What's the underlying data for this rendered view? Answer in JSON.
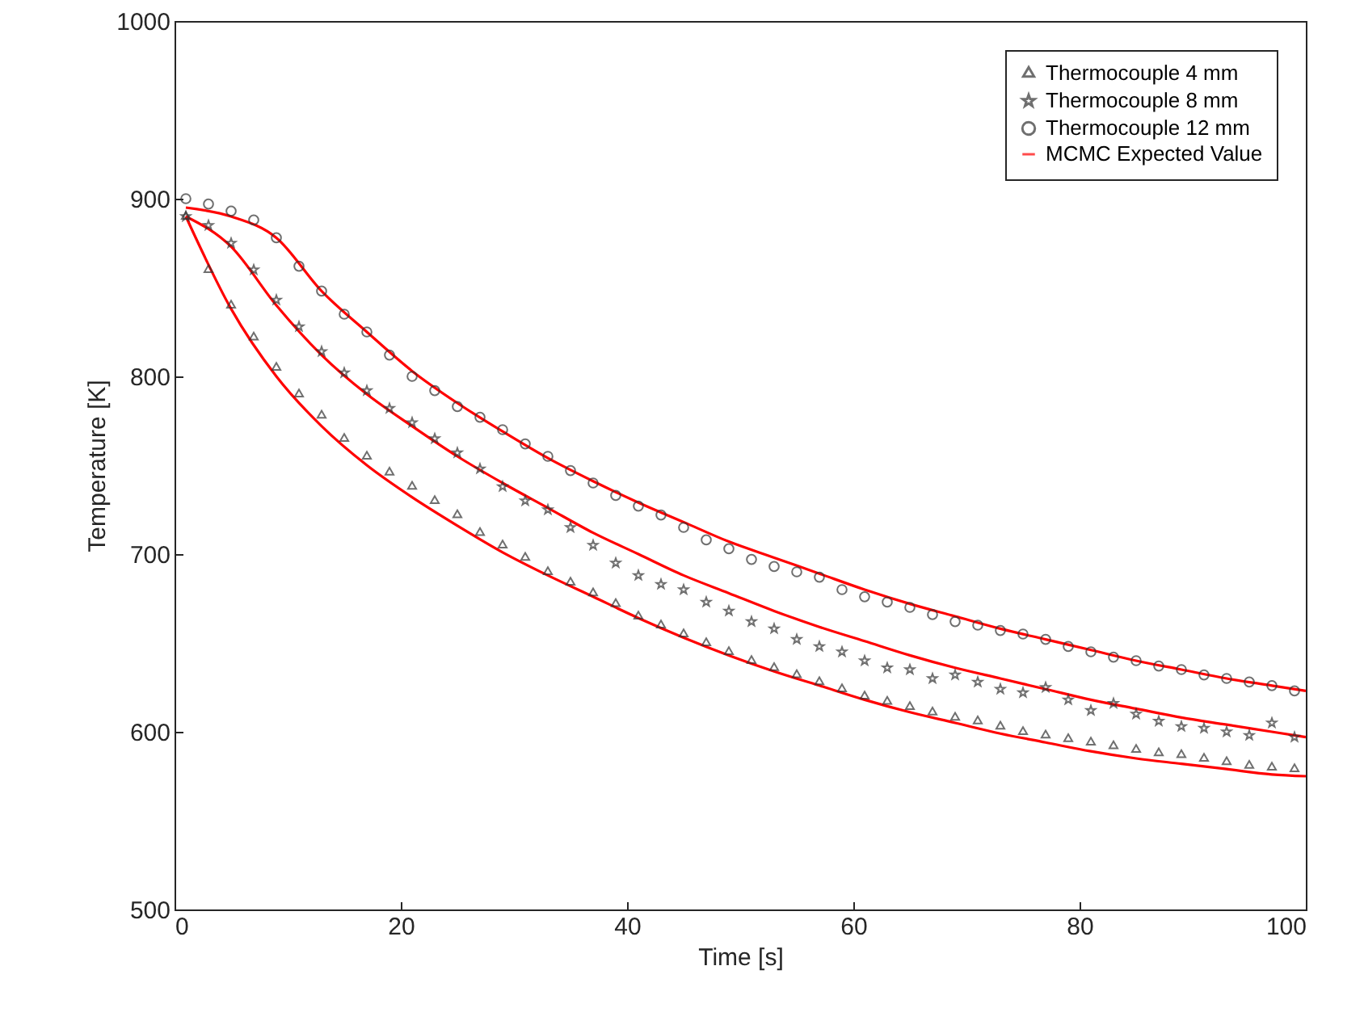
{
  "chart_data": {
    "type": "scatter",
    "xlabel": "Time [s]",
    "ylabel": "Temperature [K]",
    "xlim": [
      0,
      100
    ],
    "ylim": [
      500,
      1000
    ],
    "xticks": [
      0,
      20,
      40,
      60,
      80,
      100
    ],
    "yticks": [
      500,
      600,
      700,
      800,
      900,
      {
        "value": 1000,
        "label": "1000"
      }
    ],
    "legend": "top right",
    "x": [
      1,
      3,
      5,
      7,
      9,
      11,
      13,
      15,
      17,
      19,
      21,
      23,
      25,
      27,
      29,
      31,
      33,
      35,
      37,
      39,
      41,
      43,
      45,
      47,
      49,
      51,
      53,
      55,
      57,
      59,
      61,
      63,
      65,
      67,
      69,
      71,
      73,
      75,
      77,
      79,
      81,
      83,
      85,
      87,
      89,
      91,
      93,
      95,
      97,
      99
    ],
    "series": [
      {
        "name": "Thermocouple 4 mm",
        "color": "#333333",
        "marker": "triangle",
        "values": [
          890,
          860,
          840,
          822,
          805,
          790,
          778,
          765,
          755,
          746,
          738,
          730,
          722,
          712,
          705,
          698,
          690,
          684,
          678,
          672,
          665,
          660,
          655,
          650,
          645,
          640,
          636,
          632,
          628,
          624,
          620,
          617,
          614,
          611,
          608,
          606,
          603,
          600,
          598,
          596,
          594,
          592,
          590,
          588,
          587,
          585,
          583,
          581,
          580,
          579
        ]
      },
      {
        "name": "Thermocouple 8 mm",
        "color": "#333333",
        "marker": "star",
        "values": [
          890,
          885,
          875,
          860,
          843,
          828,
          814,
          802,
          792,
          782,
          774,
          765,
          757,
          748,
          738,
          730,
          725,
          715,
          705,
          695,
          688,
          683,
          680,
          673,
          668,
          662,
          658,
          652,
          648,
          645,
          640,
          636,
          635,
          630,
          632,
          628,
          624,
          622,
          625,
          618,
          612,
          616,
          610,
          606,
          603,
          602,
          600,
          598,
          605,
          597
        ]
      },
      {
        "name": "Thermocouple 12 mm",
        "color": "#333333",
        "marker": "circle",
        "values": [
          900,
          897,
          893,
          888,
          878,
          862,
          848,
          835,
          825,
          812,
          800,
          792,
          783,
          777,
          770,
          762,
          755,
          747,
          740,
          733,
          727,
          722,
          715,
          708,
          703,
          697,
          693,
          690,
          687,
          680,
          676,
          673,
          670,
          666,
          662,
          660,
          657,
          655,
          652,
          648,
          645,
          642,
          640,
          637,
          635,
          632,
          630,
          628,
          626,
          623
        ]
      },
      {
        "name": "MCMC Expected Value",
        "type": "line",
        "color": "#ff0000",
        "x": [
          1,
          5,
          9,
          13,
          17,
          21,
          25,
          29,
          33,
          37,
          41,
          45,
          49,
          53,
          57,
          61,
          65,
          69,
          73,
          77,
          81,
          85,
          89,
          93,
          97,
          100
        ],
        "values": [
          890,
          838,
          800,
          772,
          750,
          732,
          716,
          701,
          688,
          676,
          664,
          653,
          643,
          634,
          626,
          618,
          611,
          605,
          599,
          594,
          589,
          585,
          582,
          579,
          576,
          575
        ]
      },
      {
        "type": "line",
        "color": "#ff0000",
        "x": [
          1,
          5,
          9,
          13,
          17,
          21,
          25,
          29,
          33,
          37,
          41,
          45,
          49,
          53,
          57,
          61,
          65,
          69,
          73,
          77,
          81,
          85,
          89,
          93,
          97,
          100
        ],
        "values": [
          890,
          873,
          840,
          812,
          790,
          772,
          755,
          740,
          726,
          712,
          700,
          688,
          678,
          668,
          659,
          651,
          643,
          636,
          630,
          624,
          618,
          613,
          608,
          604,
          600,
          597
        ]
      },
      {
        "type": "line",
        "color": "#ff0000",
        "x": [
          1,
          5,
          9,
          13,
          17,
          21,
          25,
          29,
          33,
          37,
          41,
          45,
          49,
          53,
          57,
          61,
          65,
          69,
          73,
          77,
          81,
          85,
          89,
          93,
          97,
          100
        ],
        "values": [
          895,
          890,
          878,
          848,
          825,
          803,
          785,
          769,
          754,
          741,
          729,
          718,
          707,
          698,
          689,
          680,
          672,
          665,
          658,
          652,
          646,
          640,
          635,
          630,
          626,
          623
        ]
      }
    ]
  }
}
